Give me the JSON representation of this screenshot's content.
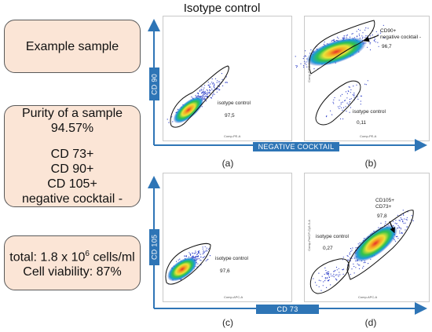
{
  "title": "Isotype control",
  "boxes": {
    "example": "Example sample",
    "purity_line1": "Purity of a sample",
    "purity_value": "94.57%",
    "markers": [
      "CD 73+",
      "CD 90+",
      "CD 105+",
      "negative cocktail -"
    ],
    "total_prefix": "total: 1.8 x 10",
    "total_exp": "6",
    "total_suffix": " cells/ml",
    "viability": "Cell viability: 87%"
  },
  "axes": {
    "top_y": "CD 90",
    "top_x": "NEGATIVE COCKTAIL",
    "bottom_y": "CD 105",
    "bottom_x": "CD 73"
  },
  "plots": [
    {
      "label": "(a)",
      "gate_label": "isotype control",
      "gate_value": "97,5",
      "xaxis": "Comp-PE-A"
    },
    {
      "label": "(b)",
      "gate1_label": "CD90+\nnegative cocktail -",
      "gate1_value": "96,7",
      "gate2_label": "isotype control",
      "gate2_value": "0,11",
      "xaxis": "Comp-PE-A",
      "yaxis": "Comp-FITC-A"
    },
    {
      "label": "(c)",
      "gate_label": "isotype control",
      "gate_value": "97,6",
      "xaxis": "Comp-APC-A"
    },
    {
      "label": "(d)",
      "gate1_label": "CD105+\nCD73+",
      "gate1_value": "97,8",
      "gate2_label": "isotype control",
      "gate2_value": "0,27",
      "xaxis": "Comp-APC-A",
      "yaxis": "Comp-PerCP-Cy5-5-A"
    }
  ],
  "colors": {
    "axis_blue": "#2e75b6",
    "box_fill": "#fbe5d6"
  }
}
